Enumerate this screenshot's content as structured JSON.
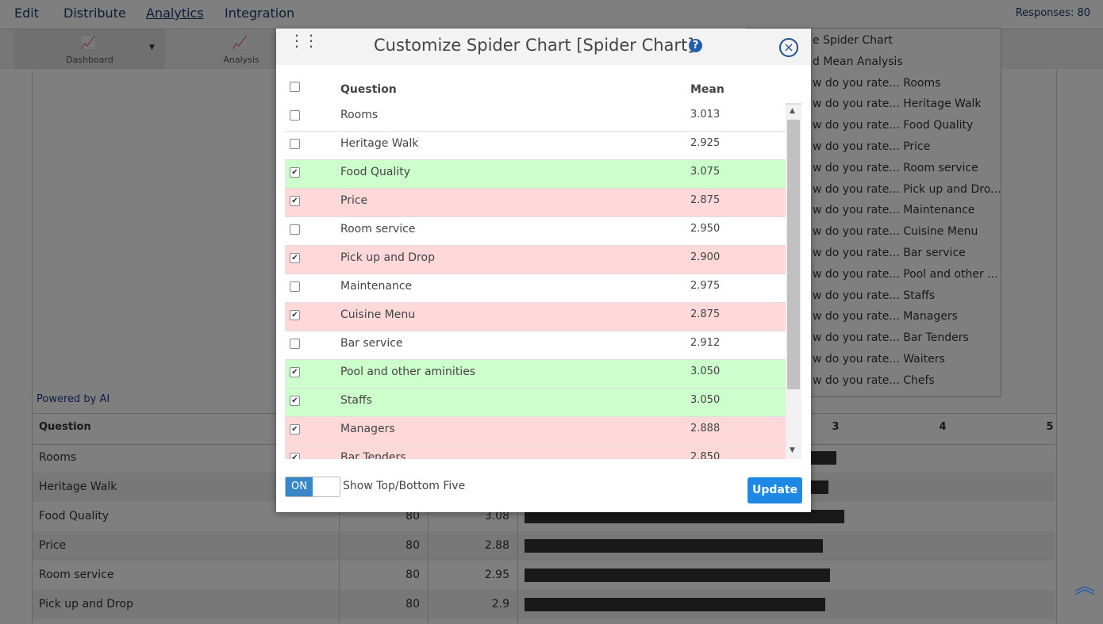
{
  "nav": {
    "items": [
      "Edit",
      "Distribute",
      "Analytics",
      "Integration"
    ],
    "responses": "Responses: 80"
  },
  "toolbar": [
    "Dashboard",
    "Analysis"
  ],
  "dropdown": [
    "e Spider Chart",
    "d Mean Analysis",
    "w do you rate... Rooms",
    "w do you rate... Heritage Walk",
    "w do you rate... Food Quality",
    "w do you rate... Price",
    "w do you rate... Room service",
    "w do you rate... Pick up and Dro...",
    "w do you rate... Maintenance",
    "w do you rate... Cuisine Menu",
    "w do you rate... Bar service",
    "w do you rate... Pool and other ...",
    "w do you rate... Staffs",
    "w do you rate... Managers",
    "w do you rate... Bar Tenders",
    "w do you rate... Waiters",
    "w do you rate... Chefs"
  ],
  "powered_by": "Powered by AI",
  "background_table": {
    "header": "Question",
    "axis_ticks": [
      3,
      4,
      5
    ],
    "rows": [
      {
        "question": "Rooms",
        "bar": 3.01
      },
      {
        "question": "Heritage Walk",
        "bar": 2.93
      },
      {
        "question": "Food Quality",
        "responses": 80,
        "mean": 3.08,
        "bar": 3.08
      },
      {
        "question": "Price",
        "responses": 80,
        "mean": 2.88,
        "bar": 2.88
      },
      {
        "question": "Room service",
        "responses": 80,
        "mean": 2.95,
        "bar": 2.95
      },
      {
        "question": "Pick up and Drop",
        "responses": 80,
        "mean": 2.9,
        "bar": 2.9
      }
    ]
  },
  "modal": {
    "title": "Customize Spider Chart [Spider Chart]",
    "columns": [
      "Question",
      "Mean"
    ],
    "rows": [
      {
        "question": "Rooms",
        "mean": "3.013",
        "checked": false,
        "highlight": null
      },
      {
        "question": "Heritage Walk",
        "mean": "2.925",
        "checked": false,
        "highlight": null
      },
      {
        "question": "Food Quality",
        "mean": "3.075",
        "checked": true,
        "highlight": "#ccffcc"
      },
      {
        "question": "Price",
        "mean": "2.875",
        "checked": true,
        "highlight": "#ffd9d9"
      },
      {
        "question": "Room service",
        "mean": "2.950",
        "checked": false,
        "highlight": null
      },
      {
        "question": "Pick up and Drop",
        "mean": "2.900",
        "checked": true,
        "highlight": "#ffd9d9"
      },
      {
        "question": "Maintenance",
        "mean": "2.975",
        "checked": false,
        "highlight": null
      },
      {
        "question": "Cuisine Menu",
        "mean": "2.875",
        "checked": true,
        "highlight": "#ffd9d9"
      },
      {
        "question": "Bar service",
        "mean": "2.912",
        "checked": false,
        "highlight": null
      },
      {
        "question": "Pool and other aminities",
        "mean": "3.050",
        "checked": true,
        "highlight": "#ccffcc"
      },
      {
        "question": "Staffs",
        "mean": "3.050",
        "checked": true,
        "highlight": "#ccffcc"
      },
      {
        "question": "Managers",
        "mean": "2.888",
        "checked": true,
        "highlight": "#ffd9d9"
      },
      {
        "question": "Bar Tenders",
        "mean": "2.850",
        "checked": true,
        "highlight": "#ffd9d9"
      }
    ],
    "toggle": "ON",
    "toggle_label": "Show Top/Bottom Five",
    "button": "Update"
  }
}
